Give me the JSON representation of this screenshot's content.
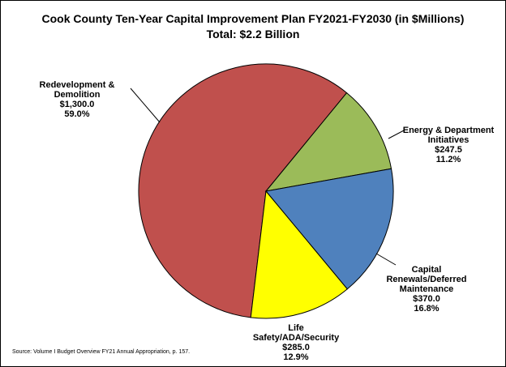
{
  "chart_data": {
    "type": "pie",
    "title": "Cook County Ten-Year Capital Improvement Plan FY2021-FY2030 (in $Millions)",
    "subtitle": "Total: $2.2 Billion",
    "slices": [
      {
        "name": "Redevelopment & Demolition",
        "value": 1300.0,
        "value_label": "$1,300.0",
        "percent_label": "59.0%",
        "color": "#C0504D"
      },
      {
        "name": "Energy & Department Initiatives",
        "value": 247.5,
        "value_label": "$247.5",
        "percent_label": "11.2%",
        "color": "#9BBB59"
      },
      {
        "name": "Capital Renewals/Deferred Maintenance",
        "value": 370.0,
        "value_label": "$370.0",
        "percent_label": "16.8%",
        "color": "#4F81BD"
      },
      {
        "name": "Life Safety/ADA/Security",
        "value": 285.0,
        "value_label": "$285.0",
        "percent_label": "12.9%",
        "color": "#FFFF00"
      }
    ],
    "source": "Source: Volume I Budget Overview FY21 Annual Appropriation, p. 157."
  }
}
